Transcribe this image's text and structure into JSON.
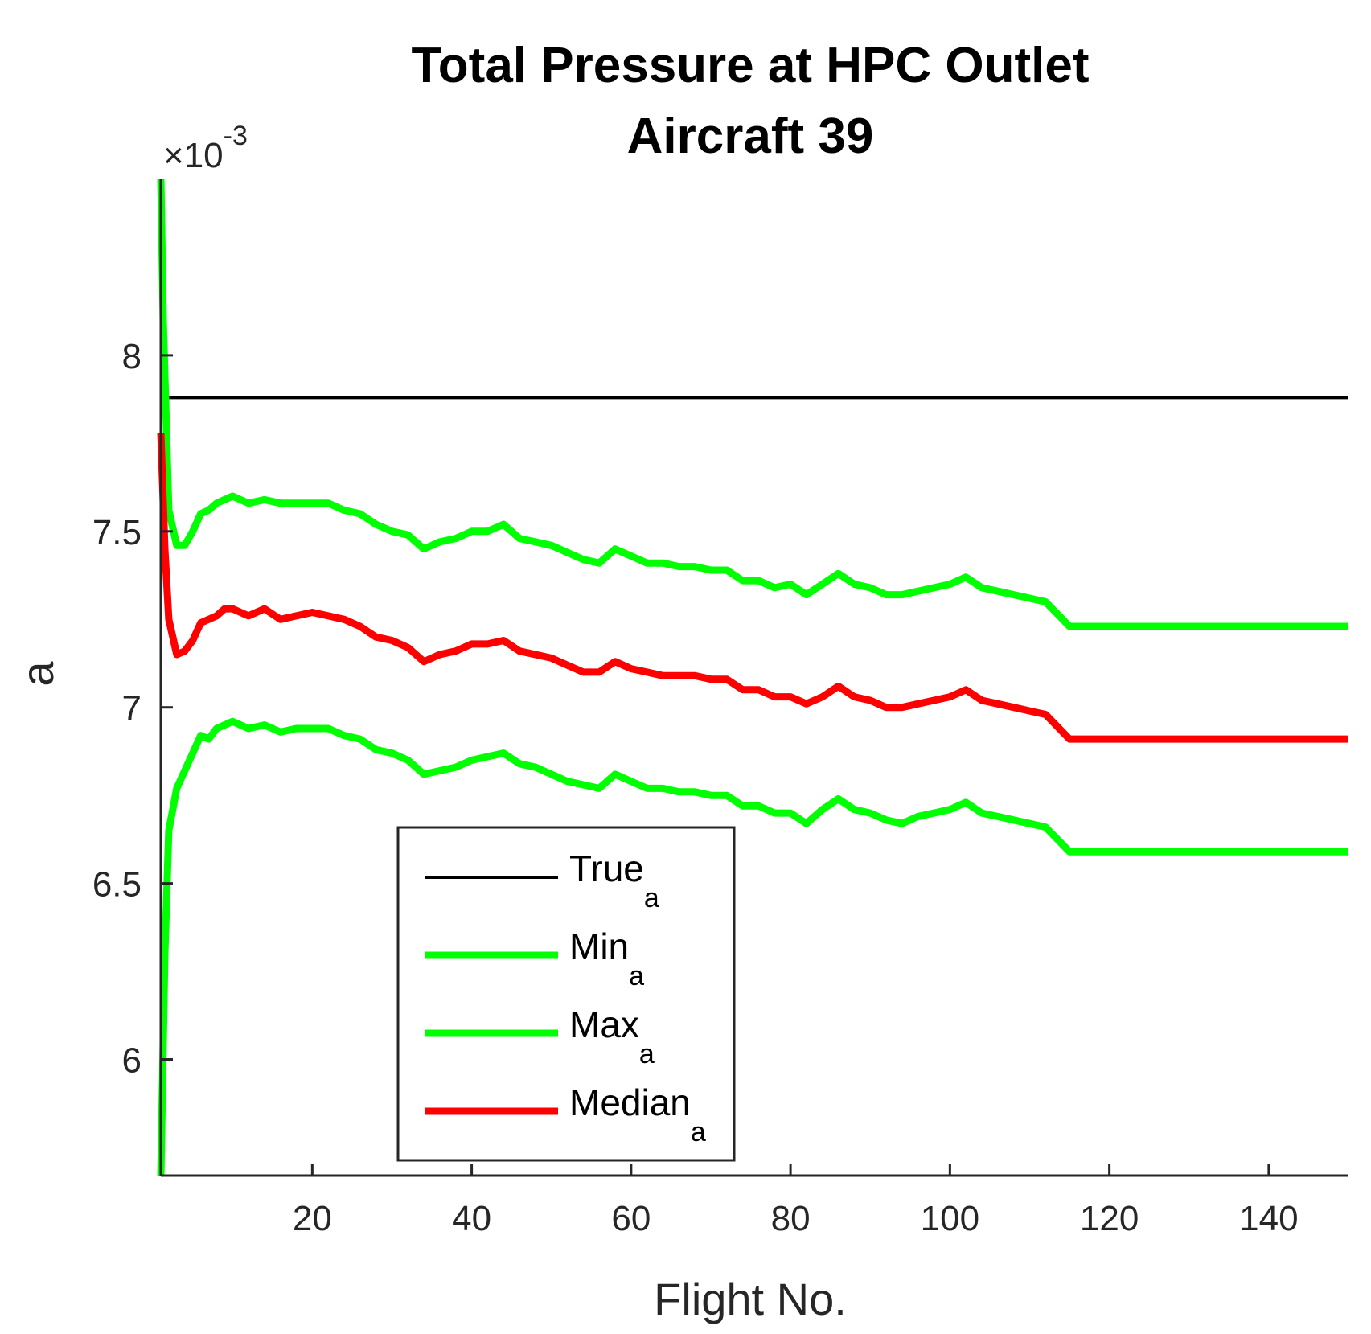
{
  "chart_data": {
    "type": "line",
    "title": "Total Pressure at HPC Outlet",
    "subtitle": "Aircraft 39",
    "xlabel": "Flight No.",
    "ylabel": "a",
    "y_exponent_label": "×10",
    "y_exponent_power": "-3",
    "xlim": [
      1,
      150
    ],
    "ylim": [
      5.67,
      8.5
    ],
    "xticks": [
      20,
      40,
      60,
      80,
      100,
      120,
      140
    ],
    "yticks": [
      6,
      6.5,
      7,
      7.5,
      8
    ],
    "grid": false,
    "legend_position": "bottom-left",
    "series": [
      {
        "name": "True",
        "name_sub": "a",
        "color": "#000000",
        "x": [
          1,
          150
        ],
        "y": [
          7.88,
          7.88
        ]
      },
      {
        "name": "Min",
        "name_sub": "a",
        "color": "#00ff00",
        "x": [
          1,
          1.5,
          2,
          3,
          4,
          5,
          6,
          7,
          8,
          9,
          10,
          12,
          14,
          16,
          18,
          20,
          22,
          24,
          26,
          28,
          30,
          32,
          34,
          36,
          38,
          40,
          42,
          44,
          46,
          48,
          50,
          52,
          54,
          56,
          58,
          60,
          62,
          64,
          66,
          68,
          70,
          72,
          74,
          76,
          78,
          80,
          82,
          84,
          86,
          88,
          90,
          92,
          94,
          96,
          98,
          100,
          102,
          104,
          106,
          108,
          110,
          112,
          115,
          120,
          130,
          140,
          150
        ],
        "y": [
          5.67,
          6.3,
          6.65,
          6.77,
          6.82,
          6.87,
          6.92,
          6.91,
          6.94,
          6.95,
          6.96,
          6.94,
          6.95,
          6.93,
          6.94,
          6.94,
          6.94,
          6.92,
          6.91,
          6.88,
          6.87,
          6.85,
          6.81,
          6.82,
          6.83,
          6.85,
          6.86,
          6.87,
          6.84,
          6.83,
          6.81,
          6.79,
          6.78,
          6.77,
          6.81,
          6.79,
          6.77,
          6.77,
          6.76,
          6.76,
          6.75,
          6.75,
          6.72,
          6.72,
          6.7,
          6.7,
          6.67,
          6.71,
          6.74,
          6.71,
          6.7,
          6.68,
          6.67,
          6.69,
          6.7,
          6.71,
          6.73,
          6.7,
          6.69,
          6.68,
          6.67,
          6.66,
          6.59,
          6.59,
          6.59,
          6.59,
          6.59
        ]
      },
      {
        "name": "Max",
        "name_sub": "a",
        "color": "#00ff00",
        "x": [
          1,
          1.3,
          2,
          3,
          4,
          5,
          6,
          7,
          8,
          9,
          10,
          12,
          14,
          16,
          18,
          20,
          22,
          24,
          26,
          28,
          30,
          32,
          34,
          36,
          38,
          40,
          42,
          44,
          46,
          48,
          50,
          52,
          54,
          56,
          58,
          60,
          62,
          64,
          66,
          68,
          70,
          72,
          74,
          76,
          78,
          80,
          82,
          84,
          86,
          88,
          90,
          92,
          94,
          96,
          98,
          100,
          102,
          104,
          106,
          108,
          110,
          112,
          115,
          120,
          130,
          140,
          150
        ],
        "y": [
          8.5,
          8.1,
          7.56,
          7.46,
          7.46,
          7.5,
          7.55,
          7.56,
          7.58,
          7.59,
          7.6,
          7.58,
          7.59,
          7.58,
          7.58,
          7.58,
          7.58,
          7.56,
          7.55,
          7.52,
          7.5,
          7.49,
          7.45,
          7.47,
          7.48,
          7.5,
          7.5,
          7.52,
          7.48,
          7.47,
          7.46,
          7.44,
          7.42,
          7.41,
          7.45,
          7.43,
          7.41,
          7.41,
          7.4,
          7.4,
          7.39,
          7.39,
          7.36,
          7.36,
          7.34,
          7.35,
          7.32,
          7.35,
          7.38,
          7.35,
          7.34,
          7.32,
          7.32,
          7.33,
          7.34,
          7.35,
          7.37,
          7.34,
          7.33,
          7.32,
          7.31,
          7.3,
          7.23,
          7.23,
          7.23,
          7.23,
          7.23
        ]
      },
      {
        "name": "Median",
        "name_sub": "a",
        "color": "#ff0000",
        "x": [
          1,
          1.5,
          2,
          3,
          4,
          5,
          6,
          7,
          8,
          9,
          10,
          12,
          14,
          16,
          18,
          20,
          22,
          24,
          26,
          28,
          30,
          32,
          34,
          36,
          38,
          40,
          42,
          44,
          46,
          48,
          50,
          52,
          54,
          56,
          58,
          60,
          62,
          64,
          66,
          68,
          70,
          72,
          74,
          76,
          78,
          80,
          82,
          84,
          86,
          88,
          90,
          92,
          94,
          96,
          98,
          100,
          102,
          104,
          106,
          108,
          110,
          112,
          115,
          120,
          130,
          140,
          150
        ],
        "y": [
          7.78,
          7.45,
          7.25,
          7.15,
          7.16,
          7.19,
          7.24,
          7.25,
          7.26,
          7.28,
          7.28,
          7.26,
          7.28,
          7.25,
          7.26,
          7.27,
          7.26,
          7.25,
          7.23,
          7.2,
          7.19,
          7.17,
          7.13,
          7.15,
          7.16,
          7.18,
          7.18,
          7.19,
          7.16,
          7.15,
          7.14,
          7.12,
          7.1,
          7.1,
          7.13,
          7.11,
          7.1,
          7.09,
          7.09,
          7.09,
          7.08,
          7.08,
          7.05,
          7.05,
          7.03,
          7.03,
          7.01,
          7.03,
          7.06,
          7.03,
          7.02,
          7.0,
          7.0,
          7.01,
          7.02,
          7.03,
          7.05,
          7.02,
          7.01,
          7.0,
          6.99,
          6.98,
          6.91,
          6.91,
          6.91,
          6.91,
          6.91
        ]
      }
    ]
  }
}
